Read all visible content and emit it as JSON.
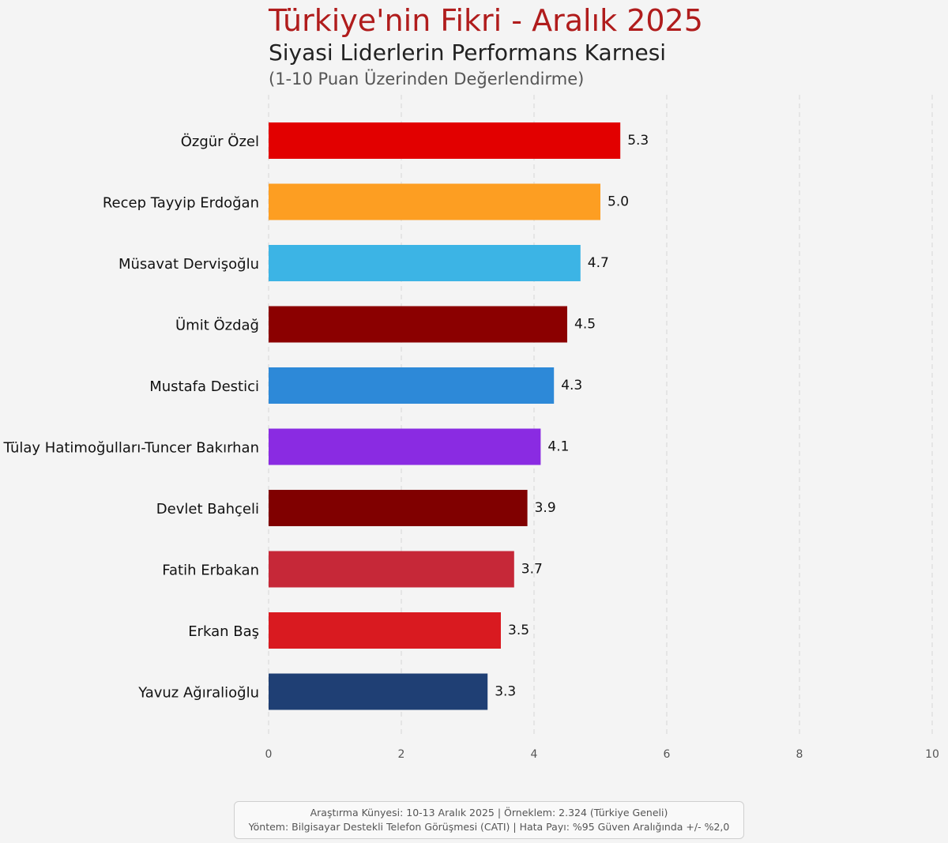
{
  "chart_data": {
    "type": "bar",
    "orientation": "horizontal",
    "title": "Türkiye'nin Fikri - Aralık 2025",
    "subtitle": "Siyasi Liderlerin Performans Karnesi",
    "note": "(1-10 Puan Üzerinden Değerlendirme)",
    "categories": [
      "Özgür Özel",
      "Recep Tayyip Erdoğan",
      "Müsavat Dervişoğlu",
      "Ümit Özdağ",
      "Mustafa Destici",
      "Tülay Hatimoğulları-Tuncer Bakırhan",
      "Devlet Bahçeli",
      "Fatih Erbakan",
      "Erkan Baş",
      "Yavuz Ağıralioğlu"
    ],
    "values": [
      5.3,
      5.0,
      4.7,
      4.5,
      4.3,
      4.1,
      3.9,
      3.7,
      3.5,
      3.3
    ],
    "value_labels": [
      "5.3",
      "5.0",
      "4.7",
      "4.5",
      "4.3",
      "4.1",
      "3.9",
      "3.7",
      "3.5",
      "3.3"
    ],
    "colors": [
      "#e20000",
      "#fd9e22",
      "#3cb4e5",
      "#8b0000",
      "#2d89d8",
      "#8a2be2",
      "#800000",
      "#c62838",
      "#d91a20",
      "#1f3f74"
    ],
    "xlim": [
      0,
      10
    ],
    "xticks": [
      0,
      2,
      4,
      6,
      8,
      10
    ],
    "xtick_labels": [
      "0",
      "2",
      "4",
      "6",
      "8",
      "10"
    ],
    "grid": "vertical dashed",
    "xlabel": "",
    "ylabel": ""
  },
  "footer": {
    "line1": "Araştırma Künyesi: 10-13 Aralık 2025 | Örneklem: 2.324 (Türkiye Geneli)",
    "line2": "Yöntem: Bilgisayar Destekli Telefon Görüşmesi (CATI) | Hata Payı: %95 Güven Aralığında +/- %2,0"
  }
}
